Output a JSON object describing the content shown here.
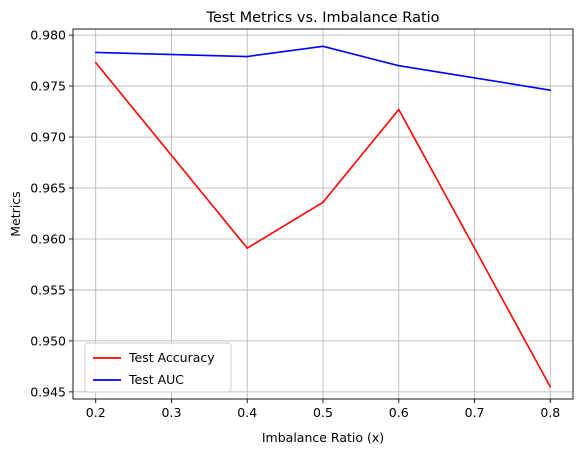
{
  "chart_data": {
    "type": "line",
    "title": "Test Metrics vs. Imbalance Ratio",
    "xlabel": "Imbalance Ratio (x)",
    "ylabel": "Metrics",
    "x": [
      0.2,
      0.4,
      0.5,
      0.6,
      0.8
    ],
    "xlim": [
      0.17,
      0.83
    ],
    "ylim": [
      0.9443,
      0.9806
    ],
    "xticks": [
      "0.2",
      "0.3",
      "0.4",
      "0.5",
      "0.6",
      "0.7",
      "0.8"
    ],
    "yticks": [
      "0.945",
      "0.950",
      "0.955",
      "0.960",
      "0.965",
      "0.970",
      "0.975",
      "0.980"
    ],
    "grid": true,
    "legend_position": "lower-left",
    "series": [
      {
        "name": "Test Accuracy",
        "color": "#ff0000",
        "values": [
          0.9773,
          0.9591,
          0.9636,
          0.9727,
          0.9455
        ]
      },
      {
        "name": "Test AUC",
        "color": "#0000ff",
        "values": [
          0.9783,
          0.9779,
          0.9789,
          0.977,
          0.9746
        ]
      }
    ]
  }
}
